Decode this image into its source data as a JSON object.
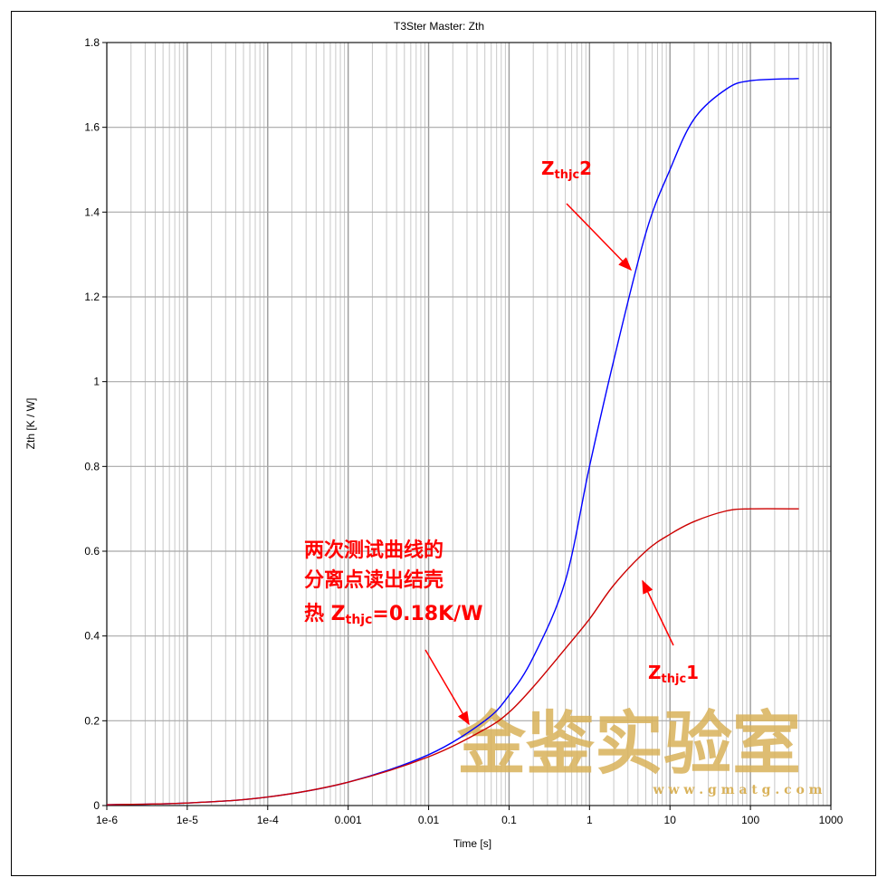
{
  "chart_data": {
    "type": "line",
    "title": "T3Ster Master: Zth",
    "xlabel": "Time [s]",
    "ylabel": "Zth [K / W]",
    "xscale": "log",
    "xlim": [
      1e-06,
      1000
    ],
    "ylim": [
      0,
      1.8
    ],
    "grid": true,
    "x_ticks": [
      1e-06,
      1e-05,
      0.0001,
      0.001,
      0.01,
      0.1,
      1,
      10,
      100,
      1000
    ],
    "x_tick_labels": [
      "1e-6",
      "1e-5",
      "1e-4",
      "0.001",
      "0.01",
      "0.1",
      "1",
      "10",
      "100",
      "1000"
    ],
    "y_ticks": [
      0,
      0.2,
      0.4,
      0.6,
      0.8,
      1,
      1.2,
      1.4,
      1.6,
      1.8
    ],
    "y_tick_labels": [
      "0",
      "0.2",
      "0.4",
      "0.6",
      "0.8",
      "1",
      "1.2",
      "1.4",
      "1.6",
      "1.8"
    ],
    "series": [
      {
        "color": "#0000ff",
        "x": [
          1e-06,
          1e-05,
          0.0001,
          0.001,
          0.01,
          0.05,
          0.1,
          0.2,
          0.5,
          1,
          2,
          5,
          10,
          20,
          50,
          100,
          400
        ],
        "y": [
          0.002,
          0.006,
          0.02,
          0.055,
          0.12,
          0.2,
          0.26,
          0.35,
          0.53,
          0.8,
          1.05,
          1.35,
          1.5,
          1.62,
          1.69,
          1.71,
          1.715
        ]
      },
      {
        "color": "#cc0000",
        "x": [
          1e-06,
          1e-05,
          0.0001,
          0.001,
          0.01,
          0.05,
          0.1,
          0.2,
          0.5,
          1,
          2,
          5,
          10,
          20,
          50,
          100,
          400
        ],
        "y": [
          0.002,
          0.006,
          0.02,
          0.055,
          0.115,
          0.18,
          0.22,
          0.28,
          0.37,
          0.44,
          0.52,
          0.6,
          0.64,
          0.67,
          0.695,
          0.7,
          0.7
        ]
      }
    ],
    "annotations": {
      "zthjc2": {
        "z": "Z",
        "sub": "thjc",
        "suffix": "2"
      },
      "zthjc1": {
        "z": "Z",
        "sub": "thjc",
        "suffix": "1"
      },
      "note_line1": "两次测试曲线的",
      "note_line2": "分离点读出结壳",
      "note_line3_prefix": "热 ",
      "note_line3_z": "Z",
      "note_line3_sub": "thjc",
      "note_line3_suffix": "=0.18K/W"
    },
    "watermark": {
      "text": "金鉴实验室",
      "url": "w w w . g m a t g . c o m"
    }
  }
}
